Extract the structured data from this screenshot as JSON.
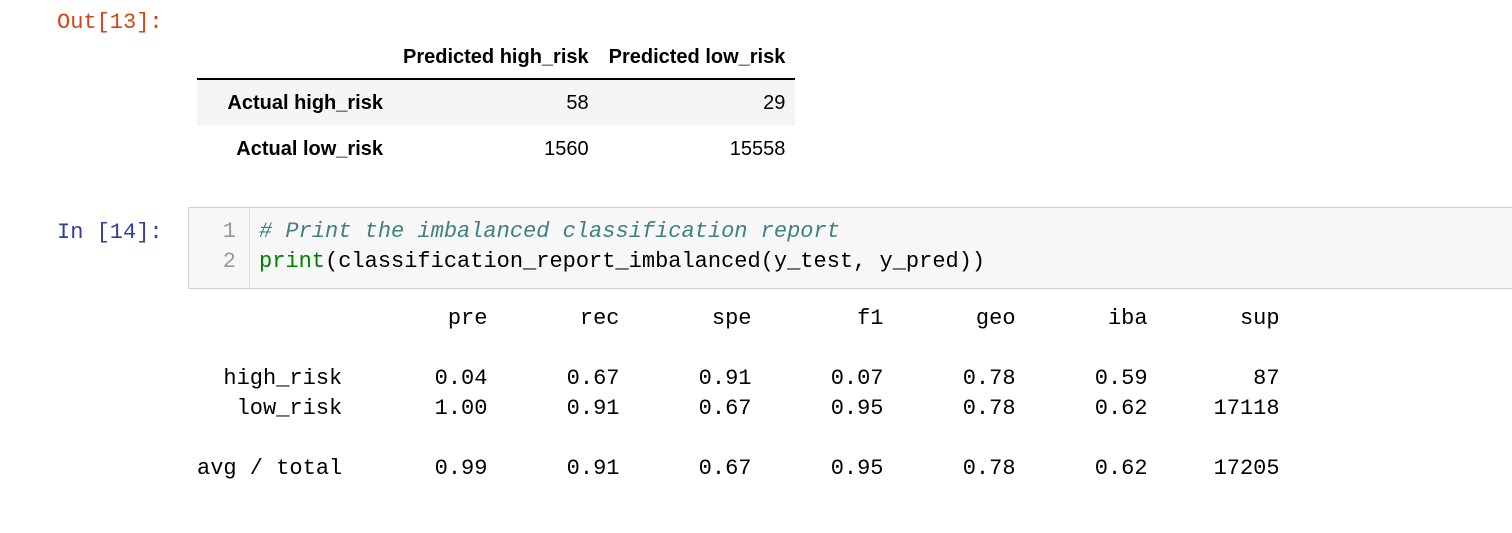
{
  "out_cell": {
    "prompt": "Out[13]:",
    "dataframe": {
      "columns": [
        "Predicted high_risk",
        "Predicted low_risk"
      ],
      "rows": [
        {
          "label": "Actual high_risk",
          "values": [
            "58",
            "29"
          ]
        },
        {
          "label": "Actual low_risk",
          "values": [
            "1560",
            "15558"
          ]
        }
      ]
    }
  },
  "in_cell": {
    "prompt": "In [14]:",
    "line_numbers": [
      "1",
      "2"
    ],
    "line1": "# Print the imbalanced classification report",
    "line2_builtin": "print",
    "line2_rest": "(classification_report_imbalanced(y_test, y_pred))"
  },
  "stdout": {
    "header": "                   pre       rec       spe        f1       geo       iba       sup",
    "blank1": "",
    "row_high": "  high_risk       0.04      0.67      0.91      0.07      0.78      0.59        87",
    "row_low": "   low_risk       1.00      0.91      0.67      0.95      0.78      0.62     17118",
    "blank2": "",
    "row_avg": "avg / total       0.99      0.91      0.67      0.95      0.78      0.62     17205"
  }
}
